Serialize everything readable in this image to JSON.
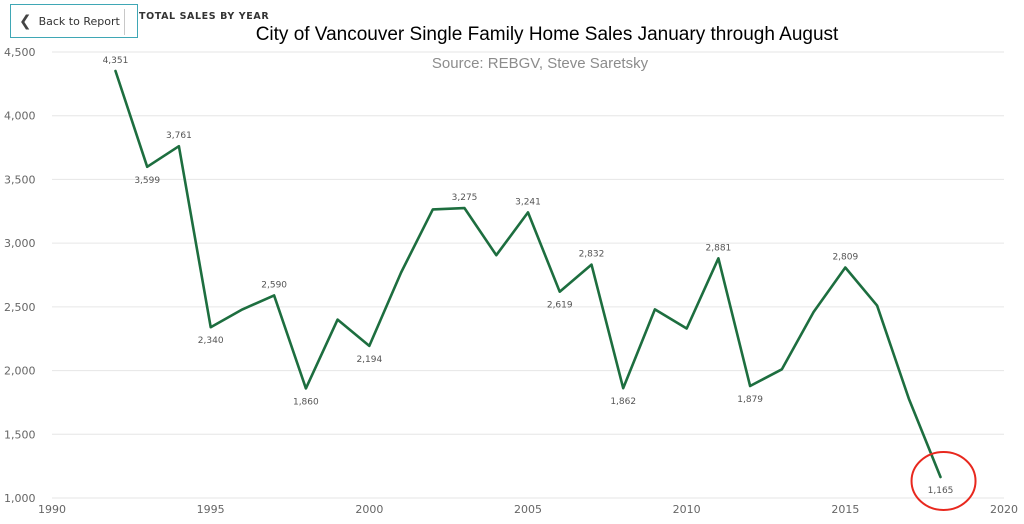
{
  "header": {
    "back_label": "Back to Report",
    "page_title": "TOTAL SALES BY YEAR"
  },
  "chart_data": {
    "type": "line",
    "title": "City of Vancouver Single Family Home Sales January through August",
    "subtitle": "Source: REBGV, Steve Saretsky",
    "xlabel": "",
    "ylabel": "",
    "xlim": [
      1990,
      2020
    ],
    "ylim": [
      1000,
      4500
    ],
    "x_ticks": [
      "1990",
      "1995",
      "2000",
      "2005",
      "2010",
      "2015",
      "2020"
    ],
    "y_ticks": [
      "1,000",
      "1,500",
      "2,000",
      "2,500",
      "3,000",
      "3,500",
      "4,000",
      "4,500"
    ],
    "grid": true,
    "line_color": "#1d6e3f",
    "highlight_color": "#e8281e",
    "series": [
      {
        "x": [
          1992,
          1993,
          1994,
          1995,
          1996,
          1997,
          1998,
          1999,
          2000,
          2001,
          2002,
          2003,
          2004,
          2005,
          2006,
          2007,
          2008,
          2009,
          2010,
          2011,
          2012,
          2013,
          2014,
          2015,
          2016,
          2017,
          2018
        ],
        "y": [
          4351,
          3599,
          3761,
          2340,
          2480,
          2590,
          1860,
          2400,
          2194,
          2770,
          3265,
          3275,
          2905,
          3241,
          2619,
          2832,
          1862,
          2480,
          2330,
          2881,
          1879,
          2010,
          2460,
          2809,
          2510,
          1780,
          1165
        ]
      }
    ],
    "data_labels": [
      {
        "x": 1992,
        "y": 4351,
        "text": "4,351",
        "pos": "above"
      },
      {
        "x": 1993,
        "y": 3599,
        "text": "3,599",
        "pos": "below"
      },
      {
        "x": 1994,
        "y": 3761,
        "text": "3,761",
        "pos": "above"
      },
      {
        "x": 1995,
        "y": 2340,
        "text": "2,340",
        "pos": "below"
      },
      {
        "x": 1997,
        "y": 2590,
        "text": "2,590",
        "pos": "above"
      },
      {
        "x": 1998,
        "y": 1860,
        "text": "1,860",
        "pos": "below"
      },
      {
        "x": 2000,
        "y": 2194,
        "text": "2,194",
        "pos": "below"
      },
      {
        "x": 2003,
        "y": 3275,
        "text": "3,275",
        "pos": "above"
      },
      {
        "x": 2005,
        "y": 3241,
        "text": "3,241",
        "pos": "above"
      },
      {
        "x": 2006,
        "y": 2619,
        "text": "2,619",
        "pos": "below"
      },
      {
        "x": 2007,
        "y": 2832,
        "text": "2,832",
        "pos": "above"
      },
      {
        "x": 2008,
        "y": 1862,
        "text": "1,862",
        "pos": "below"
      },
      {
        "x": 2011,
        "y": 2881,
        "text": "2,881",
        "pos": "above"
      },
      {
        "x": 2012,
        "y": 1879,
        "text": "1,879",
        "pos": "below"
      },
      {
        "x": 2015,
        "y": 2809,
        "text": "2,809",
        "pos": "above"
      },
      {
        "x": 2018,
        "y": 1165,
        "text": "1,165",
        "pos": "below"
      }
    ],
    "highlight": {
      "x": 2018,
      "y": 1165,
      "shape": "circle"
    }
  }
}
